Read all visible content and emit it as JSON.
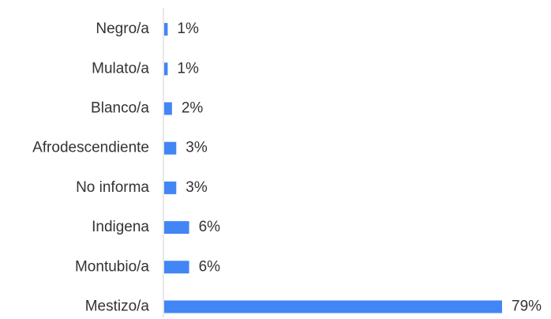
{
  "chart_data": {
    "type": "bar",
    "orientation": "horizontal",
    "categories": [
      "Negro/a",
      "Mulato/a",
      "Blanco/a",
      "Afrodescendiente",
      "No informa",
      "Indigena",
      "Montubio/a",
      "Mestizo/a"
    ],
    "values": [
      1,
      1,
      2,
      3,
      3,
      6,
      6,
      79
    ],
    "value_labels": [
      "1%",
      "1%",
      "2%",
      "3%",
      "3%",
      "6%",
      "6%",
      "79%"
    ],
    "color": "#4285f4"
  }
}
